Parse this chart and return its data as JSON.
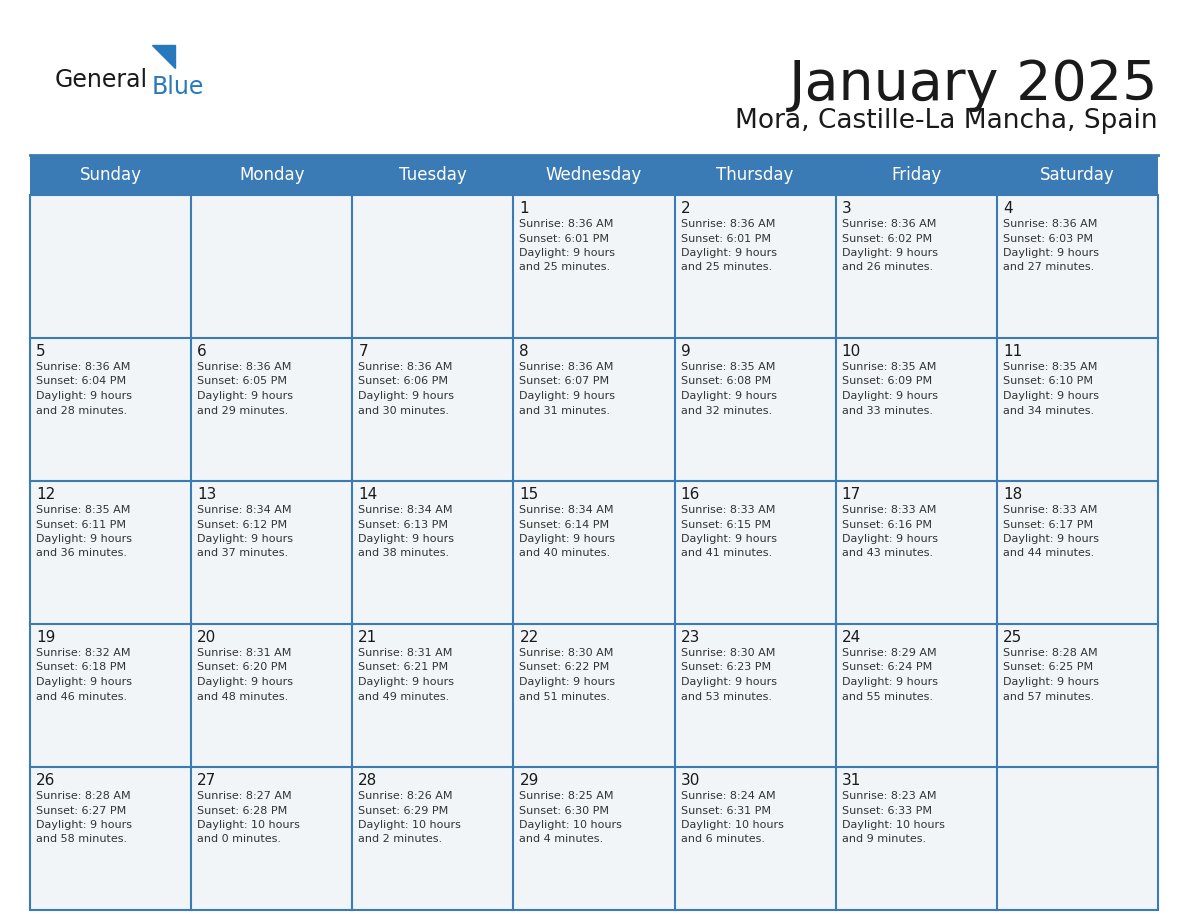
{
  "title": "January 2025",
  "subtitle": "Mora, Castille-La Mancha, Spain",
  "header_bg_color": "#3a7ab5",
  "header_text_color": "#ffffff",
  "cell_bg_color": "#f2f5f8",
  "border_color": "#3a7ab5",
  "day_names": [
    "Sunday",
    "Monday",
    "Tuesday",
    "Wednesday",
    "Thursday",
    "Friday",
    "Saturday"
  ],
  "title_color": "#1a1a1a",
  "subtitle_color": "#1a1a1a",
  "cell_text_color": "#333333",
  "day_num_color": "#1a1a1a",
  "logo_general_color": "#1a1a1a",
  "logo_blue_color": "#2878be",
  "logo_triangle_color": "#2878be",
  "calendar": [
    [
      {
        "day": "",
        "sunrise": "",
        "sunset": "",
        "daylight": ""
      },
      {
        "day": "",
        "sunrise": "",
        "sunset": "",
        "daylight": ""
      },
      {
        "day": "",
        "sunrise": "",
        "sunset": "",
        "daylight": ""
      },
      {
        "day": "1",
        "sunrise": "Sunrise: 8:36 AM",
        "sunset": "Sunset: 6:01 PM",
        "daylight": "Daylight: 9 hours\nand 25 minutes."
      },
      {
        "day": "2",
        "sunrise": "Sunrise: 8:36 AM",
        "sunset": "Sunset: 6:01 PM",
        "daylight": "Daylight: 9 hours\nand 25 minutes."
      },
      {
        "day": "3",
        "sunrise": "Sunrise: 8:36 AM",
        "sunset": "Sunset: 6:02 PM",
        "daylight": "Daylight: 9 hours\nand 26 minutes."
      },
      {
        "day": "4",
        "sunrise": "Sunrise: 8:36 AM",
        "sunset": "Sunset: 6:03 PM",
        "daylight": "Daylight: 9 hours\nand 27 minutes."
      }
    ],
    [
      {
        "day": "5",
        "sunrise": "Sunrise: 8:36 AM",
        "sunset": "Sunset: 6:04 PM",
        "daylight": "Daylight: 9 hours\nand 28 minutes."
      },
      {
        "day": "6",
        "sunrise": "Sunrise: 8:36 AM",
        "sunset": "Sunset: 6:05 PM",
        "daylight": "Daylight: 9 hours\nand 29 minutes."
      },
      {
        "day": "7",
        "sunrise": "Sunrise: 8:36 AM",
        "sunset": "Sunset: 6:06 PM",
        "daylight": "Daylight: 9 hours\nand 30 minutes."
      },
      {
        "day": "8",
        "sunrise": "Sunrise: 8:36 AM",
        "sunset": "Sunset: 6:07 PM",
        "daylight": "Daylight: 9 hours\nand 31 minutes."
      },
      {
        "day": "9",
        "sunrise": "Sunrise: 8:35 AM",
        "sunset": "Sunset: 6:08 PM",
        "daylight": "Daylight: 9 hours\nand 32 minutes."
      },
      {
        "day": "10",
        "sunrise": "Sunrise: 8:35 AM",
        "sunset": "Sunset: 6:09 PM",
        "daylight": "Daylight: 9 hours\nand 33 minutes."
      },
      {
        "day": "11",
        "sunrise": "Sunrise: 8:35 AM",
        "sunset": "Sunset: 6:10 PM",
        "daylight": "Daylight: 9 hours\nand 34 minutes."
      }
    ],
    [
      {
        "day": "12",
        "sunrise": "Sunrise: 8:35 AM",
        "sunset": "Sunset: 6:11 PM",
        "daylight": "Daylight: 9 hours\nand 36 minutes."
      },
      {
        "day": "13",
        "sunrise": "Sunrise: 8:34 AM",
        "sunset": "Sunset: 6:12 PM",
        "daylight": "Daylight: 9 hours\nand 37 minutes."
      },
      {
        "day": "14",
        "sunrise": "Sunrise: 8:34 AM",
        "sunset": "Sunset: 6:13 PM",
        "daylight": "Daylight: 9 hours\nand 38 minutes."
      },
      {
        "day": "15",
        "sunrise": "Sunrise: 8:34 AM",
        "sunset": "Sunset: 6:14 PM",
        "daylight": "Daylight: 9 hours\nand 40 minutes."
      },
      {
        "day": "16",
        "sunrise": "Sunrise: 8:33 AM",
        "sunset": "Sunset: 6:15 PM",
        "daylight": "Daylight: 9 hours\nand 41 minutes."
      },
      {
        "day": "17",
        "sunrise": "Sunrise: 8:33 AM",
        "sunset": "Sunset: 6:16 PM",
        "daylight": "Daylight: 9 hours\nand 43 minutes."
      },
      {
        "day": "18",
        "sunrise": "Sunrise: 8:33 AM",
        "sunset": "Sunset: 6:17 PM",
        "daylight": "Daylight: 9 hours\nand 44 minutes."
      }
    ],
    [
      {
        "day": "19",
        "sunrise": "Sunrise: 8:32 AM",
        "sunset": "Sunset: 6:18 PM",
        "daylight": "Daylight: 9 hours\nand 46 minutes."
      },
      {
        "day": "20",
        "sunrise": "Sunrise: 8:31 AM",
        "sunset": "Sunset: 6:20 PM",
        "daylight": "Daylight: 9 hours\nand 48 minutes."
      },
      {
        "day": "21",
        "sunrise": "Sunrise: 8:31 AM",
        "sunset": "Sunset: 6:21 PM",
        "daylight": "Daylight: 9 hours\nand 49 minutes."
      },
      {
        "day": "22",
        "sunrise": "Sunrise: 8:30 AM",
        "sunset": "Sunset: 6:22 PM",
        "daylight": "Daylight: 9 hours\nand 51 minutes."
      },
      {
        "day": "23",
        "sunrise": "Sunrise: 8:30 AM",
        "sunset": "Sunset: 6:23 PM",
        "daylight": "Daylight: 9 hours\nand 53 minutes."
      },
      {
        "day": "24",
        "sunrise": "Sunrise: 8:29 AM",
        "sunset": "Sunset: 6:24 PM",
        "daylight": "Daylight: 9 hours\nand 55 minutes."
      },
      {
        "day": "25",
        "sunrise": "Sunrise: 8:28 AM",
        "sunset": "Sunset: 6:25 PM",
        "daylight": "Daylight: 9 hours\nand 57 minutes."
      }
    ],
    [
      {
        "day": "26",
        "sunrise": "Sunrise: 8:28 AM",
        "sunset": "Sunset: 6:27 PM",
        "daylight": "Daylight: 9 hours\nand 58 minutes."
      },
      {
        "day": "27",
        "sunrise": "Sunrise: 8:27 AM",
        "sunset": "Sunset: 6:28 PM",
        "daylight": "Daylight: 10 hours\nand 0 minutes."
      },
      {
        "day": "28",
        "sunrise": "Sunrise: 8:26 AM",
        "sunset": "Sunset: 6:29 PM",
        "daylight": "Daylight: 10 hours\nand 2 minutes."
      },
      {
        "day": "29",
        "sunrise": "Sunrise: 8:25 AM",
        "sunset": "Sunset: 6:30 PM",
        "daylight": "Daylight: 10 hours\nand 4 minutes."
      },
      {
        "day": "30",
        "sunrise": "Sunrise: 8:24 AM",
        "sunset": "Sunset: 6:31 PM",
        "daylight": "Daylight: 10 hours\nand 6 minutes."
      },
      {
        "day": "31",
        "sunrise": "Sunrise: 8:23 AM",
        "sunset": "Sunset: 6:33 PM",
        "daylight": "Daylight: 10 hours\nand 9 minutes."
      },
      {
        "day": "",
        "sunrise": "",
        "sunset": "",
        "daylight": ""
      }
    ]
  ]
}
